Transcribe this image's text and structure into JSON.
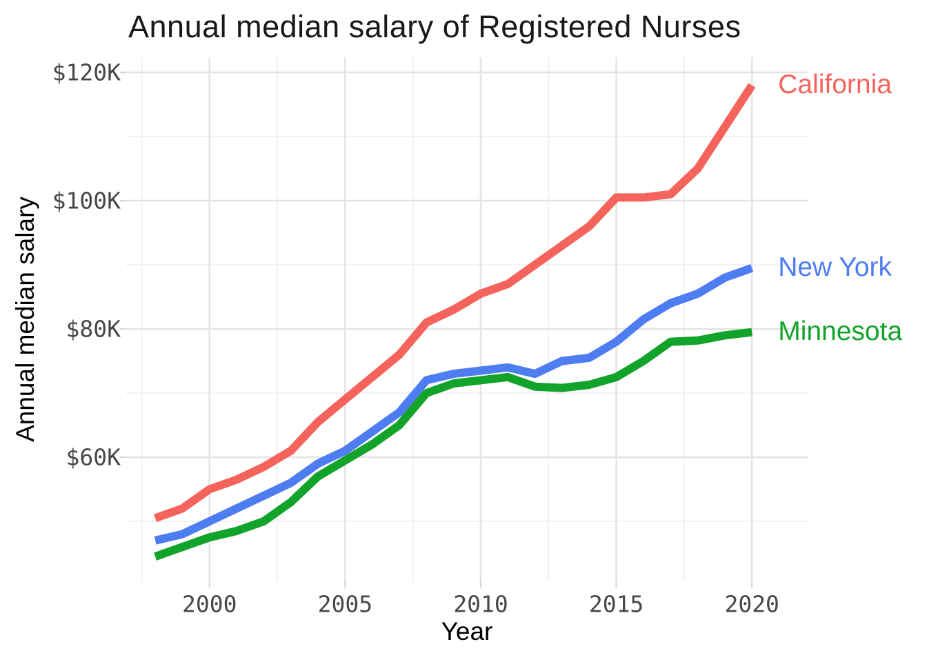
{
  "chart_data": {
    "type": "line",
    "title": "Annual median salary of Registered Nurses",
    "xlabel": "Year",
    "ylabel": "Annual median salary",
    "units": "USD thousands",
    "x": [
      1998,
      1999,
      2000,
      2001,
      2002,
      2003,
      2004,
      2005,
      2006,
      2007,
      2008,
      2009,
      2010,
      2011,
      2012,
      2013,
      2014,
      2015,
      2016,
      2017,
      2018,
      2019,
      2020
    ],
    "series": [
      {
        "name": "California",
        "color": "#F4645C",
        "values": [
          50.5,
          52,
          55,
          56.5,
          58.5,
          61,
          65.5,
          69,
          72.5,
          76,
          81,
          83,
          85.5,
          87,
          90,
          93,
          96,
          100.5,
          100.5,
          101,
          105,
          111.5,
          118
        ]
      },
      {
        "name": "New York",
        "color": "#4E7DF1",
        "values": [
          47,
          48,
          50,
          52,
          54,
          56,
          59,
          61,
          64,
          67,
          72,
          73,
          73.5,
          74,
          73,
          75,
          75.5,
          78,
          81.5,
          84,
          85.5,
          88,
          89.5
        ]
      },
      {
        "name": "Minnesota",
        "color": "#12A32B",
        "values": [
          44.5,
          46,
          47.5,
          48.5,
          50,
          53,
          57,
          59.5,
          62,
          65,
          70,
          71.5,
          72,
          72.5,
          71,
          70.8,
          71.3,
          72.5,
          75,
          78,
          78.2,
          79,
          79.5
        ]
      }
    ],
    "x_ticks": {
      "major": [
        2000,
        2005,
        2010,
        2015,
        2020
      ],
      "minor": [
        1997.5,
        2002.5,
        2007.5,
        2012.5,
        2017.5
      ]
    },
    "y_ticks": {
      "major": [
        {
          "value": 60,
          "label": "$60K"
        },
        {
          "value": 80,
          "label": "$80K"
        },
        {
          "value": 100,
          "label": "$100K"
        },
        {
          "value": 120,
          "label": "$120K"
        }
      ],
      "minor": [
        50,
        70,
        90,
        110
      ]
    },
    "xlim": [
      1996.93,
      2022.08
    ],
    "ylim": [
      40.65,
      122.37
    ],
    "grid": true,
    "legend_position": "direct-labels-right",
    "colors": {
      "grid_major": "#e3e3e3",
      "grid_minor": "#efefef",
      "tick_mark": "#d6d6d6",
      "tick_text": "#474747",
      "title_text": "#191919"
    }
  }
}
